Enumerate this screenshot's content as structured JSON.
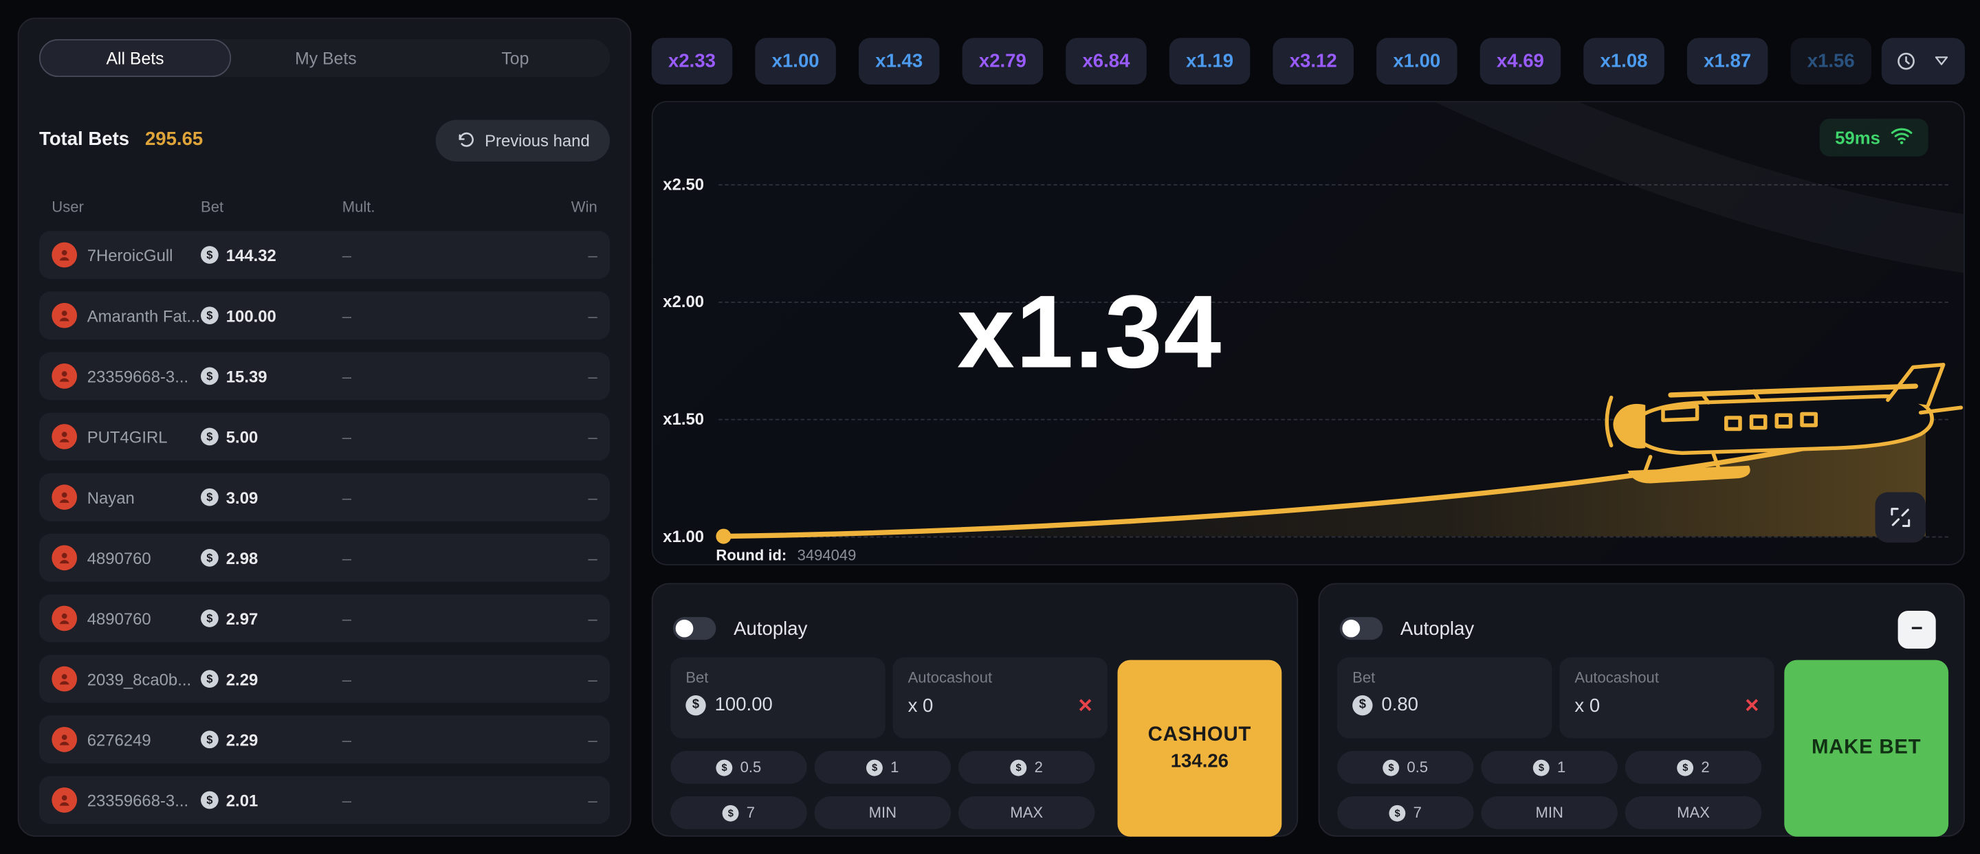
{
  "icons": {
    "coin": "$",
    "close": "×",
    "minus": "−"
  },
  "colors": {
    "accent_yellow": "#f0b43c",
    "accent_green": "#56c056",
    "chip_blue": "#4d9bef",
    "chip_purple": "#9a5cff",
    "latency_green": "#3fd46c",
    "danger_red": "#e8434a",
    "total_bets_value": "#dfa43a"
  },
  "sidebar": {
    "tabs": [
      {
        "label": "All Bets",
        "active": true
      },
      {
        "label": "My Bets",
        "active": false
      },
      {
        "label": "Top",
        "active": false
      }
    ],
    "total_bets_label": "Total Bets",
    "total_bets_value": "295.65",
    "previous_hand_label": "Previous hand",
    "table": {
      "headers": [
        "User",
        "Bet",
        "Mult.",
        "Win"
      ],
      "rows": [
        {
          "user": "7HeroicGull",
          "bet": "144.32",
          "mult": "–",
          "win": "–"
        },
        {
          "user": "Amaranth Fat...",
          "bet": "100.00",
          "mult": "–",
          "win": "–"
        },
        {
          "user": "23359668-3...",
          "bet": "15.39",
          "mult": "–",
          "win": "–"
        },
        {
          "user": "PUT4GIRL",
          "bet": "5.00",
          "mult": "–",
          "win": "–"
        },
        {
          "user": "Nayan",
          "bet": "3.09",
          "mult": "–",
          "win": "–"
        },
        {
          "user": "4890760",
          "bet": "2.98",
          "mult": "–",
          "win": "–"
        },
        {
          "user": "4890760",
          "bet": "2.97",
          "mult": "–",
          "win": "–"
        },
        {
          "user": "2039_8ca0b...",
          "bet": "2.29",
          "mult": "–",
          "win": "–"
        },
        {
          "user": "6276249",
          "bet": "2.29",
          "mult": "–",
          "win": "–"
        },
        {
          "user": "23359668-3...",
          "bet": "2.01",
          "mult": "–",
          "win": "–"
        }
      ]
    }
  },
  "history": {
    "chips": [
      {
        "value": "x2.33",
        "tier": "purple"
      },
      {
        "value": "x1.00",
        "tier": "blue"
      },
      {
        "value": "x1.43",
        "tier": "blue"
      },
      {
        "value": "x2.79",
        "tier": "purple"
      },
      {
        "value": "x6.84",
        "tier": "purple"
      },
      {
        "value": "x1.19",
        "tier": "blue"
      },
      {
        "value": "x3.12",
        "tier": "purple"
      },
      {
        "value": "x1.00",
        "tier": "blue"
      },
      {
        "value": "x4.69",
        "tier": "purple"
      },
      {
        "value": "x1.08",
        "tier": "blue"
      },
      {
        "value": "x1.87",
        "tier": "blue"
      },
      {
        "value": "x1.56",
        "tier": "blue",
        "faded": true
      }
    ]
  },
  "game": {
    "latency": "59ms",
    "current_multiplier": "x1.34",
    "round_id_label": "Round id:",
    "round_id_value": "3494049",
    "y_axis": [
      "x2.50",
      "x2.00",
      "x1.50",
      "x1.00"
    ]
  },
  "panels": [
    {
      "autoplay_label": "Autoplay",
      "bet_label": "Bet",
      "bet_value": "100.00",
      "autocashout_label": "Autocashout",
      "autocashout_value": "x 0",
      "quick_bets": [
        "0.5",
        "1",
        "2",
        "7",
        "MIN",
        "MAX"
      ],
      "action_label": "CASHOUT",
      "action_sub": "134.26"
    },
    {
      "autoplay_label": "Autoplay",
      "bet_label": "Bet",
      "bet_value": "0.80",
      "autocashout_label": "Autocashout",
      "autocashout_value": "x 0",
      "quick_bets": [
        "0.5",
        "1",
        "2",
        "7",
        "MIN",
        "MAX"
      ],
      "action_label": "MAKE BET",
      "action_sub": ""
    }
  ]
}
